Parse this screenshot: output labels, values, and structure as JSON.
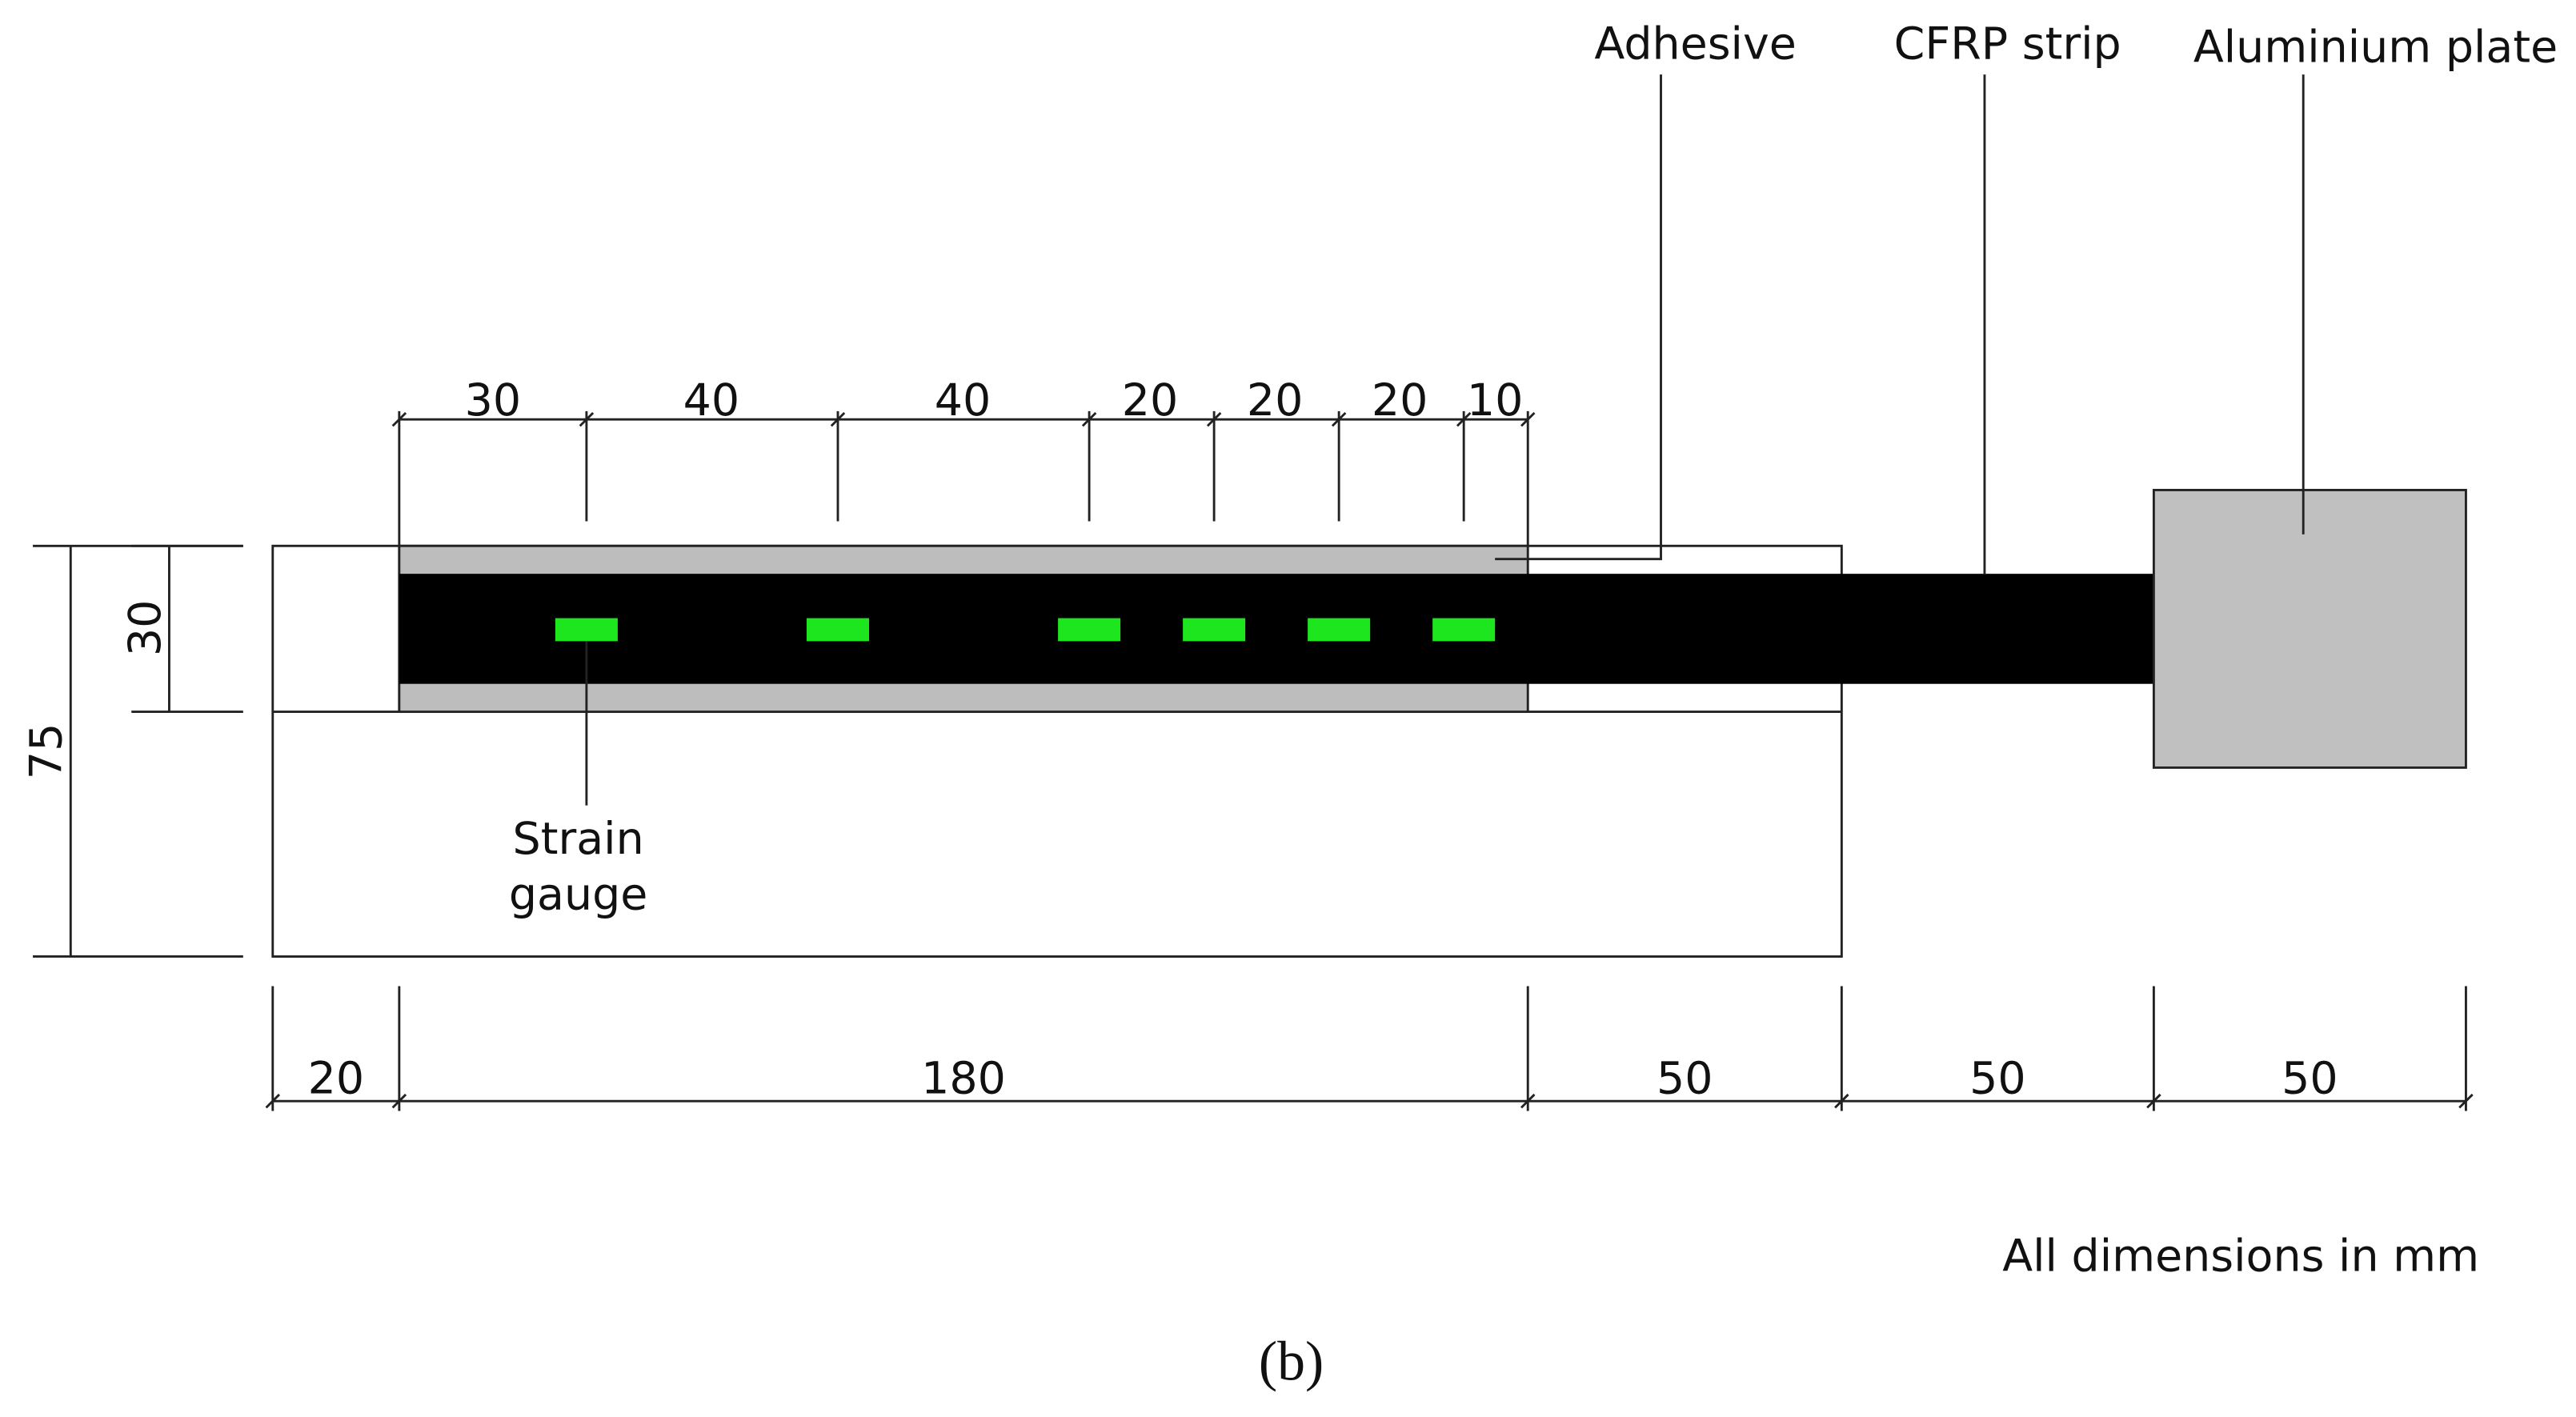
{
  "labels": {
    "adhesive": "Adhesive",
    "cfrp_strip": "CFRP strip",
    "aluminium_plate": "Aluminium plate",
    "strain_gauge": [
      "Strain",
      "gauge"
    ]
  },
  "dimensions": {
    "top": [
      "30",
      "40",
      "40",
      "20",
      "20",
      "20",
      "10"
    ],
    "left": [
      "30",
      "75"
    ],
    "bottom": [
      "20",
      "180",
      "50",
      "50",
      "50"
    ]
  },
  "note": "All dimensions in mm",
  "caption": "(b)"
}
